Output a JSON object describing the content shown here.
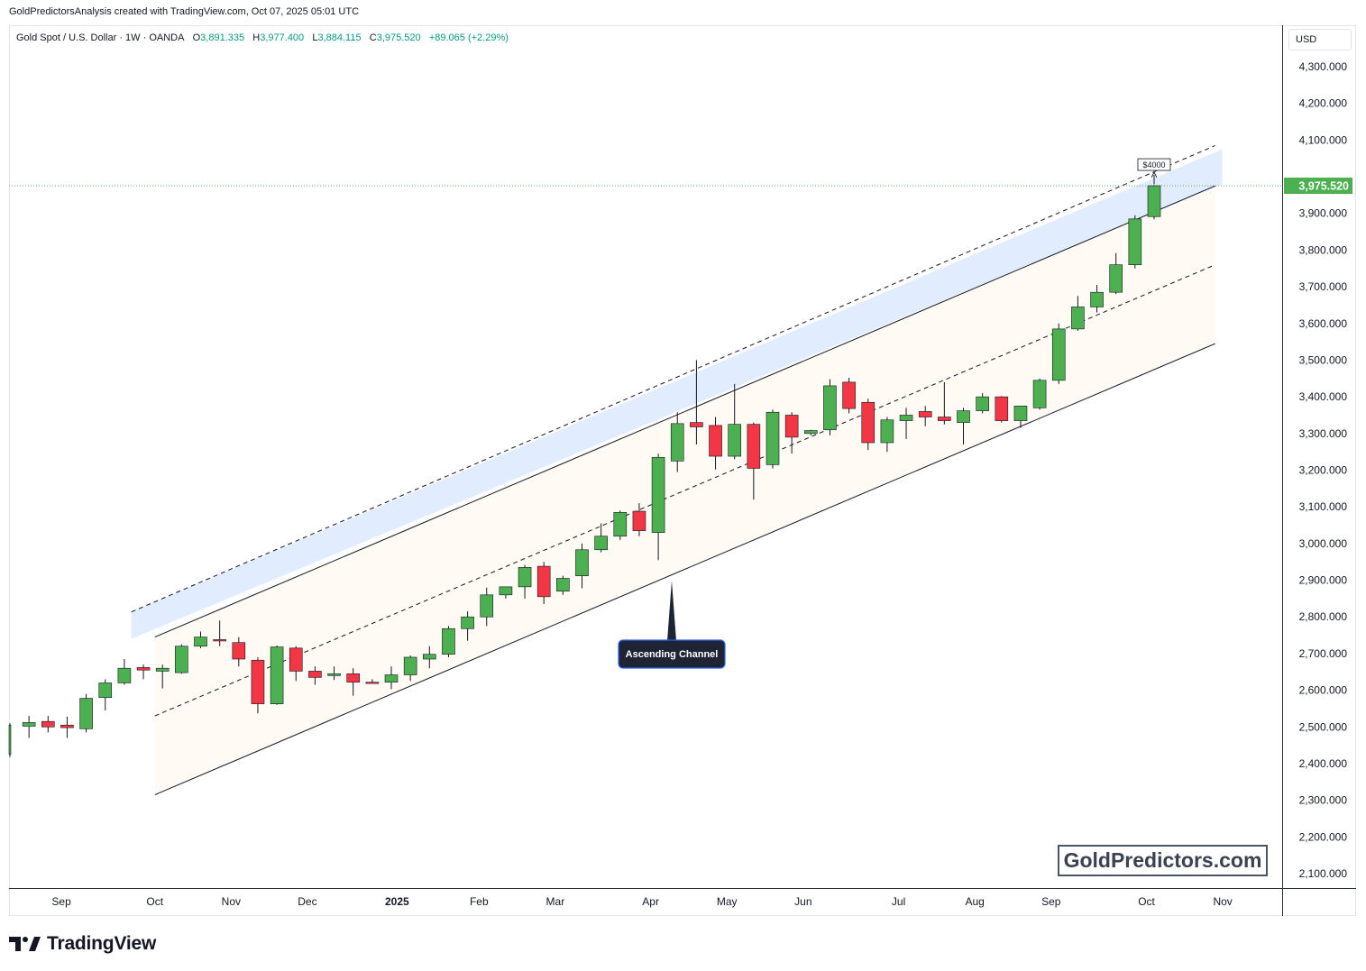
{
  "header": {
    "attribution": "GoldPredictorsAnalysis created with TradingView.com, Oct 07, 2025 05:01 UTC"
  },
  "legend": {
    "symbol": "Gold Spot / U.S. Dollar · 1W · OANDA",
    "open_label": "O",
    "open": "3,891.335",
    "high_label": "H",
    "high": "3,977.400",
    "low_label": "L",
    "low": "3,884.115",
    "close_label": "C",
    "close": "3,975.520",
    "change": "+89.065 (+2.29%)"
  },
  "price_scale": {
    "currency": "USD",
    "last_price_label": "3,975.520"
  },
  "annotations": {
    "target_label": "$4000",
    "channel_label": "Ascending Channel"
  },
  "watermark": "GoldPredictors.com",
  "footer": {
    "brand": "TradingView"
  },
  "colors": {
    "up": "#4caf50",
    "down": "#f23645",
    "channel_fill": "#fffaf3",
    "upper_band_fill": "#dbe7ff",
    "last_price": "#4caf50"
  },
  "chart_data": {
    "type": "candlestick",
    "timeframe": "1W",
    "y_axis": {
      "ticks": [
        2100,
        2200,
        2300,
        2400,
        2500,
        2600,
        2700,
        2800,
        2900,
        3000,
        3100,
        3200,
        3300,
        3400,
        3500,
        3600,
        3700,
        3800,
        3900,
        4000,
        4100,
        4200,
        4300
      ],
      "tick_labels": [
        "2,100.000",
        "2,200.000",
        "2,300.000",
        "2,400.000",
        "2,500.000",
        "2,600.000",
        "2,700.000",
        "2,800.000",
        "2,900.000",
        "3,000.000",
        "3,100.000",
        "3,200.000",
        "3,300.000",
        "3,400.000",
        "3,500.000",
        "3,600.000",
        "3,700.000",
        "3,800.000",
        "3,900.000",
        "4,000.000",
        "4,100.000",
        "4,200.000",
        "4,300.000"
      ],
      "ylim": [
        2060,
        4380
      ]
    },
    "x_axis": {
      "labels": [
        {
          "text": "Sep",
          "index": 2.7,
          "bold": false
        },
        {
          "text": "Oct",
          "index": 7.6,
          "bold": false
        },
        {
          "text": "Nov",
          "index": 11.6,
          "bold": false
        },
        {
          "text": "Dec",
          "index": 15.6,
          "bold": false
        },
        {
          "text": "2025",
          "index": 20.3,
          "bold": true
        },
        {
          "text": "Feb",
          "index": 24.6,
          "bold": false
        },
        {
          "text": "Mar",
          "index": 28.6,
          "bold": false
        },
        {
          "text": "Apr",
          "index": 33.6,
          "bold": false
        },
        {
          "text": "May",
          "index": 37.6,
          "bold": false
        },
        {
          "text": "Jun",
          "index": 41.6,
          "bold": false
        },
        {
          "text": "Jul",
          "index": 46.6,
          "bold": false
        },
        {
          "text": "Aug",
          "index": 50.6,
          "bold": false
        },
        {
          "text": "Sep",
          "index": 54.6,
          "bold": false
        },
        {
          "text": "Oct",
          "index": 59.6,
          "bold": false
        },
        {
          "text": "Nov",
          "index": 63.6,
          "bold": false
        }
      ]
    },
    "candles": [
      {
        "o": 2425,
        "h": 2510,
        "l": 2418,
        "c": 2505
      },
      {
        "o": 2502,
        "h": 2530,
        "l": 2470,
        "c": 2512
      },
      {
        "o": 2515,
        "h": 2530,
        "l": 2485,
        "c": 2500
      },
      {
        "o": 2505,
        "h": 2528,
        "l": 2470,
        "c": 2498
      },
      {
        "o": 2495,
        "h": 2590,
        "l": 2485,
        "c": 2578
      },
      {
        "o": 2580,
        "h": 2630,
        "l": 2545,
        "c": 2620
      },
      {
        "o": 2620,
        "h": 2685,
        "l": 2615,
        "c": 2660
      },
      {
        "o": 2662,
        "h": 2670,
        "l": 2630,
        "c": 2655
      },
      {
        "o": 2652,
        "h": 2670,
        "l": 2605,
        "c": 2660
      },
      {
        "o": 2648,
        "h": 2725,
        "l": 2645,
        "c": 2720
      },
      {
        "o": 2720,
        "h": 2760,
        "l": 2715,
        "c": 2745
      },
      {
        "o": 2738,
        "h": 2790,
        "l": 2720,
        "c": 2735
      },
      {
        "o": 2730,
        "h": 2745,
        "l": 2665,
        "c": 2685
      },
      {
        "o": 2682,
        "h": 2690,
        "l": 2537,
        "c": 2563
      },
      {
        "o": 2563,
        "h": 2722,
        "l": 2560,
        "c": 2718
      },
      {
        "o": 2715,
        "h": 2720,
        "l": 2625,
        "c": 2652
      },
      {
        "o": 2652,
        "h": 2665,
        "l": 2615,
        "c": 2635
      },
      {
        "o": 2640,
        "h": 2665,
        "l": 2628,
        "c": 2645
      },
      {
        "o": 2645,
        "h": 2660,
        "l": 2585,
        "c": 2622
      },
      {
        "o": 2622,
        "h": 2630,
        "l": 2618,
        "c": 2621
      },
      {
        "o": 2622,
        "h": 2665,
        "l": 2603,
        "c": 2642
      },
      {
        "o": 2642,
        "h": 2695,
        "l": 2625,
        "c": 2690
      },
      {
        "o": 2685,
        "h": 2720,
        "l": 2660,
        "c": 2698
      },
      {
        "o": 2698,
        "h": 2775,
        "l": 2690,
        "c": 2768
      },
      {
        "o": 2768,
        "h": 2815,
        "l": 2735,
        "c": 2800
      },
      {
        "o": 2800,
        "h": 2880,
        "l": 2775,
        "c": 2860
      },
      {
        "o": 2860,
        "h": 2880,
        "l": 2850,
        "c": 2882
      },
      {
        "o": 2882,
        "h": 2942,
        "l": 2850,
        "c": 2935
      },
      {
        "o": 2938,
        "h": 2950,
        "l": 2835,
        "c": 2855
      },
      {
        "o": 2870,
        "h": 2912,
        "l": 2860,
        "c": 2905
      },
      {
        "o": 2912,
        "h": 3000,
        "l": 2878,
        "c": 2983
      },
      {
        "o": 2983,
        "h": 3055,
        "l": 2976,
        "c": 3020
      },
      {
        "o": 3020,
        "h": 3090,
        "l": 3010,
        "c": 3085
      },
      {
        "o": 3088,
        "h": 3110,
        "l": 3020,
        "c": 3035
      },
      {
        "o": 3030,
        "h": 3245,
        "l": 2955,
        "c": 3235
      },
      {
        "o": 3225,
        "h": 3358,
        "l": 3195,
        "c": 3327
      },
      {
        "o": 3330,
        "h": 3500,
        "l": 3270,
        "c": 3318
      },
      {
        "o": 3322,
        "h": 3345,
        "l": 3202,
        "c": 3238
      },
      {
        "o": 3238,
        "h": 3435,
        "l": 3230,
        "c": 3325
      },
      {
        "o": 3325,
        "h": 3330,
        "l": 3120,
        "c": 3205
      },
      {
        "o": 3215,
        "h": 3365,
        "l": 3205,
        "c": 3358
      },
      {
        "o": 3350,
        "h": 3358,
        "l": 3245,
        "c": 3290
      },
      {
        "o": 3300,
        "h": 3310,
        "l": 3295,
        "c": 3308
      },
      {
        "o": 3310,
        "h": 3448,
        "l": 3295,
        "c": 3430
      },
      {
        "o": 3440,
        "h": 3452,
        "l": 3355,
        "c": 3368
      },
      {
        "o": 3385,
        "h": 3395,
        "l": 3255,
        "c": 3275
      },
      {
        "o": 3275,
        "h": 3345,
        "l": 3250,
        "c": 3337
      },
      {
        "o": 3335,
        "h": 3370,
        "l": 3285,
        "c": 3350
      },
      {
        "o": 3360,
        "h": 3375,
        "l": 3320,
        "c": 3345
      },
      {
        "o": 3345,
        "h": 3440,
        "l": 3325,
        "c": 3335
      },
      {
        "o": 3330,
        "h": 3370,
        "l": 3270,
        "c": 3362
      },
      {
        "o": 3362,
        "h": 3410,
        "l": 3355,
        "c": 3400
      },
      {
        "o": 3400,
        "h": 3402,
        "l": 3330,
        "c": 3335
      },
      {
        "o": 3335,
        "h": 3375,
        "l": 3315,
        "c": 3375
      },
      {
        "o": 3370,
        "h": 3450,
        "l": 3365,
        "c": 3445
      },
      {
        "o": 3445,
        "h": 3600,
        "l": 3435,
        "c": 3585
      },
      {
        "o": 3585,
        "h": 3675,
        "l": 3580,
        "c": 3645
      },
      {
        "o": 3645,
        "h": 3705,
        "l": 3630,
        "c": 3685
      },
      {
        "o": 3685,
        "h": 3792,
        "l": 3680,
        "c": 3760
      },
      {
        "o": 3760,
        "h": 3895,
        "l": 3750,
        "c": 3885
      },
      {
        "o": 3891.335,
        "h": 3977.4,
        "l": 3884.115,
        "c": 3975.52
      }
    ],
    "last_price": 3975.52,
    "channel": {
      "support": {
        "start": {
          "index": 7.6,
          "price": 2315
        },
        "end": {
          "index": 63.2,
          "price": 3545
        }
      },
      "resistance": {
        "start": {
          "index": 7.6,
          "price": 2745
        },
        "end": {
          "index": 63.2,
          "price": 3975
        }
      },
      "midline": {
        "start": {
          "index": 7.6,
          "price": 2530
        },
        "end": {
          "index": 63.2,
          "price": 3760
        }
      },
      "upper_dashed": {
        "start": {
          "index": 7.6,
          "price": 2848
        },
        "end": {
          "index": 63.2,
          "price": 4085
        }
      }
    },
    "target_price": 4000
  }
}
